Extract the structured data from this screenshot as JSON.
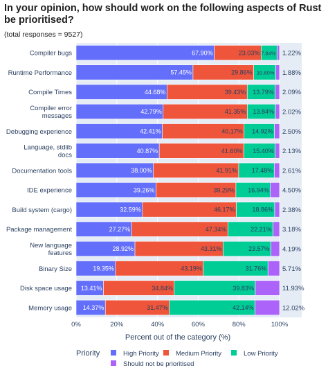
{
  "chart_data": {
    "type": "bar",
    "orientation": "horizontal",
    "stacked": true,
    "title": "In your opinion, how should work on the following aspects of Rust be prioritised?",
    "subtitle": "(total responses = 9527)",
    "xlabel": "Percent out of the category (%)",
    "xlim": [
      0,
      100
    ],
    "xticks": [
      "0%",
      "20%",
      "40%",
      "60%",
      "80%",
      "100%"
    ],
    "legend_title": "Priority",
    "legend_position": "bottom",
    "categories": [
      "Compiler bugs",
      "Runtime Performance",
      "Compile Times",
      "Compiler error messages",
      "Debugging experience",
      "Language, stdlib docs",
      "Documentation tools",
      "IDE experience",
      "Build system (cargo)",
      "Package management",
      "New language features",
      "Binary Size",
      "Disk space usage",
      "Memory usage"
    ],
    "category_lines": [
      [
        "Compiler bugs"
      ],
      [
        "Runtime Performance"
      ],
      [
        "Compile Times"
      ],
      [
        "Compiler error",
        "messages"
      ],
      [
        "Debugging experience"
      ],
      [
        "Language, stdlib",
        "docs"
      ],
      [
        "Documentation tools"
      ],
      [
        "IDE experience"
      ],
      [
        "Build system (cargo)"
      ],
      [
        "Package management"
      ],
      [
        "New language",
        "features"
      ],
      [
        "Binary Size"
      ],
      [
        "Disk space usage"
      ],
      [
        "Memory usage"
      ]
    ],
    "series": [
      {
        "name": "High Priority",
        "color": "#636efa",
        "values": [
          67.9,
          57.45,
          44.68,
          42.79,
          42.41,
          40.87,
          38.0,
          39.26,
          32.59,
          27.27,
          28.92,
          19.35,
          13.41,
          14.37
        ]
      },
      {
        "name": "Medium Priority",
        "color": "#ef553b",
        "values": [
          23.03,
          29.86,
          39.43,
          41.35,
          40.17,
          41.6,
          41.91,
          39.29,
          46.17,
          47.34,
          43.31,
          43.19,
          34.84,
          31.47
        ]
      },
      {
        "name": "Low Priority",
        "color": "#00cc96",
        "values": [
          7.84,
          10.8,
          13.79,
          13.84,
          14.92,
          15.4,
          17.48,
          16.94,
          18.86,
          22.21,
          23.57,
          31.76,
          39.83,
          42.14
        ]
      },
      {
        "name": "Should not be prioritised",
        "color": "#ab63fa",
        "values": [
          1.22,
          1.88,
          2.09,
          2.02,
          2.5,
          2.13,
          2.61,
          4.5,
          2.38,
          3.18,
          4.19,
          5.71,
          11.93,
          12.02
        ]
      }
    ],
    "labels": [
      [
        "67.90%",
        "23.03%",
        "7.84%",
        "1.22%"
      ],
      [
        "57.45%",
        "29.86%",
        "10.80%",
        "1.88%"
      ],
      [
        "44.68%",
        "39.43%",
        "13.79%",
        "2.09%"
      ],
      [
        "42.79%",
        "41.35%",
        "13.84%",
        "2.02%"
      ],
      [
        "42.41%",
        "40.17%",
        "14.92%",
        "2.50%"
      ],
      [
        "40.87%",
        "41.60%",
        "15.40%",
        "2.13%"
      ],
      [
        "38.00%",
        "41.91%",
        "17.48%",
        "2.61%"
      ],
      [
        "39.26%",
        "39.29%",
        "16.94%",
        "4.50%"
      ],
      [
        "32.59%",
        "46.17%",
        "18.86%",
        "2.38%"
      ],
      [
        "27.27%",
        "47.34%",
        "22.21%",
        "3.18%"
      ],
      [
        "28.92%",
        "43.31%",
        "23.57%",
        "4.19%"
      ],
      [
        "19.35%",
        "43.19%",
        "31.76%",
        "5.71%"
      ],
      [
        "13.41%",
        "34.84%",
        "39.83%",
        "11.93%"
      ],
      [
        "14.37%",
        "31.47%",
        "42.14%",
        "12.02%"
      ]
    ],
    "grid": true,
    "plot_background": "#e5ecf6"
  }
}
